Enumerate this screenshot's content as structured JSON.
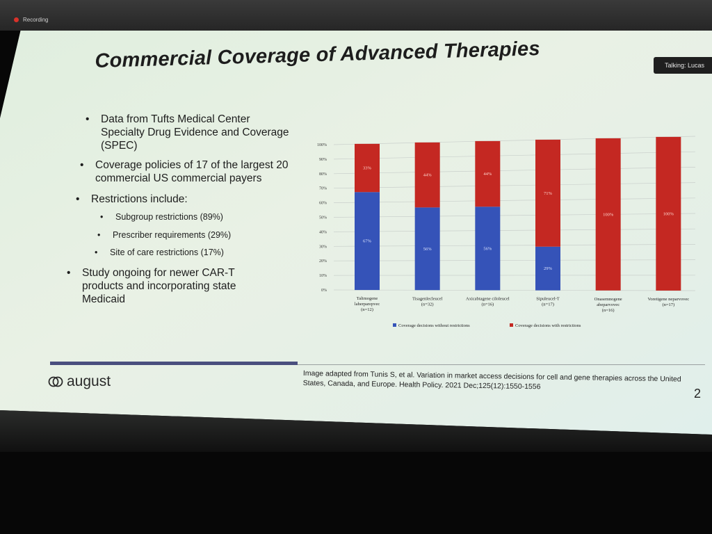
{
  "recording": {
    "label": "Recording"
  },
  "talking": {
    "label": "Talking: Lucas"
  },
  "slide": {
    "title": "Commercial Coverage of Advanced Therapies",
    "bullets": [
      "Data from Tufts Medical Center Specialty Drug Evidence and Coverage (SPEC)",
      "Coverage policies of 17 of the largest 20 commercial US commercial payers",
      "Restrictions include:",
      "Study ongoing for newer CAR-T products and incorporating state Medicaid"
    ],
    "sub_bullets": [
      "Subgroup restrictions (89%)",
      "Prescriber requirements (29%)",
      "Site of care restrictions (17%)"
    ],
    "logo_text": "august",
    "citation": "Image adapted from Tunis S, et al. Variation in market access decisions for cell and gene therapies across the United States, Canada, and Europe. Health Policy. 2021 Dec;125(12):1550-1556",
    "page_number": "2"
  },
  "chart_data": {
    "type": "bar",
    "stacked": true,
    "categories": [
      [
        "Talimogene",
        "laherparepvec",
        "(n=12)"
      ],
      [
        "Tisagenlecleucel",
        "(n=32)"
      ],
      [
        "Axicabtagene ciloleucel",
        "(n=16)"
      ],
      [
        "Sipuleucel-T",
        "(n=17)"
      ],
      [
        "Onasemnogene",
        "abeparvovec",
        "(n=16)"
      ],
      [
        "Voretigene neparvovec",
        "(n=17)"
      ]
    ],
    "series": [
      {
        "name": "Coverage decisions without restrictions",
        "color": "#3553b8",
        "values": [
          67,
          56,
          56,
          29,
          0,
          0
        ],
        "labels": [
          "67%",
          "56%",
          "56%",
          "29%",
          "",
          ""
        ]
      },
      {
        "name": "Coverage decisions with restrictions",
        "color": "#c42822",
        "values": [
          33,
          44,
          44,
          71,
          100,
          100
        ],
        "labels": [
          "33%",
          "44%",
          "44%",
          "71%",
          "100%",
          "100%"
        ]
      }
    ],
    "yticks": [
      "0%",
      "10%",
      "20%",
      "30%",
      "40%",
      "50%",
      "60%",
      "70%",
      "80%",
      "90%",
      "100%"
    ],
    "ylim": [
      0,
      100
    ],
    "grid": true,
    "legend_position": "bottom"
  }
}
